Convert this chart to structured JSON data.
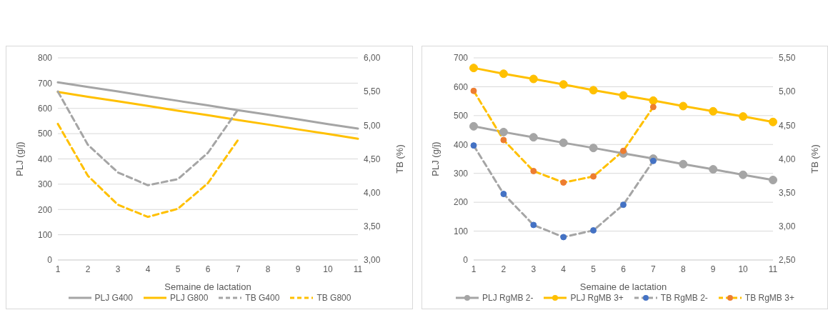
{
  "chart_data": [
    {
      "type": "line",
      "xlabel": "Semaine de lactation",
      "ylabel": "PLJ (g/j)",
      "y2label": "TB (%)",
      "categories": [
        "1",
        "2",
        "3",
        "4",
        "5",
        "6",
        "7",
        "8",
        "9",
        "10",
        "11"
      ],
      "ylim": [
        0,
        800
      ],
      "yticks": [
        0,
        100,
        200,
        300,
        400,
        500,
        600,
        700,
        800
      ],
      "y2lim": [
        3,
        6
      ],
      "y2ticks": [
        {
          "value": 3,
          "label": "3,00"
        },
        {
          "value": 3.5,
          "label": "3,50"
        },
        {
          "value": 4,
          "label": "4,00"
        },
        {
          "value": 4.5,
          "label": "4,50"
        },
        {
          "value": 5,
          "label": "5,00"
        },
        {
          "value": 5.5,
          "label": "5,50"
        },
        {
          "value": 6,
          "label": "6,00"
        }
      ],
      "grid": "y",
      "legend": "bottom",
      "series": [
        {
          "name": "PLJ G400",
          "color": "#a5a5a5",
          "line_style": "solid",
          "values": [
            703,
            685,
            667,
            648,
            630,
            612,
            593,
            575,
            557,
            538,
            520
          ]
        },
        {
          "name": "PLJ G800",
          "color": "#ffc000",
          "line_style": "solid",
          "values": [
            665,
            646,
            628,
            610,
            591,
            573,
            554,
            536,
            517,
            499,
            480
          ]
        },
        {
          "name": "TB G400",
          "color": "#a5a5a5",
          "line_style": "dashed",
          "axis": "y2",
          "values": [
            5.5,
            4.71,
            4.3,
            4.11,
            4.2,
            4.59,
            5.23,
            null,
            null,
            null,
            null
          ]
        },
        {
          "name": "TB G800",
          "color": "#ffc000",
          "line_style": "dashed",
          "axis": "y2",
          "values": [
            5.02,
            4.25,
            3.82,
            3.64,
            3.76,
            4.14,
            4.78,
            null,
            null,
            null,
            null
          ]
        }
      ]
    },
    {
      "type": "line",
      "xlabel": "Semaine de lactation",
      "ylabel": "PLJ (g/j)",
      "y2label": "TB (%)",
      "categories": [
        "1",
        "2",
        "3",
        "4",
        "5",
        "6",
        "7",
        "8",
        "9",
        "10",
        "11"
      ],
      "ylim": [
        0,
        700
      ],
      "yticks": [
        0,
        100,
        200,
        300,
        400,
        500,
        600,
        700
      ],
      "y2lim": [
        2.5,
        5.5
      ],
      "y2ticks": [
        {
          "value": 2.5,
          "label": "2,50"
        },
        {
          "value": 3,
          "label": "3,00"
        },
        {
          "value": 3.5,
          "label": "3,50"
        },
        {
          "value": 4,
          "label": "4,00"
        },
        {
          "value": 4.5,
          "label": "4,50"
        },
        {
          "value": 5,
          "label": "5,00"
        },
        {
          "value": 5.5,
          "label": "5,50"
        }
      ],
      "grid": "y",
      "legend": "bottom",
      "series": [
        {
          "name": "PLJ RgMB 2-",
          "color": "#a5a5a5",
          "line_style": "solid",
          "marker": "circle",
          "values": [
            463,
            443,
            425,
            406,
            388,
            369,
            351,
            332,
            314,
            295,
            277
          ]
        },
        {
          "name": "PLJ RgMB 3+",
          "color": "#ffc000",
          "line_style": "solid",
          "marker": "circle",
          "values": [
            665,
            645,
            627,
            608,
            588,
            570,
            552,
            533,
            515,
            497,
            478
          ]
        },
        {
          "name": "TB RgMB 2-",
          "color": "#a5a5a5",
          "line_style": "dashed",
          "marker": "circle",
          "axis": "y2",
          "colors": [
            "#4472c4",
            "#4472c4",
            "#4472c4",
            "#4472c4",
            "#4472c4",
            "#4472c4",
            "#4472c4",
            null,
            null,
            null,
            null
          ],
          "values": [
            4.2,
            3.48,
            3.02,
            2.84,
            2.94,
            3.32,
            3.97,
            null,
            null,
            null,
            null
          ]
        },
        {
          "name": "TB RgMB 3+",
          "color": "#ffc000",
          "line_style": "dashed",
          "marker": "circle",
          "axis": "y2",
          "colors": [
            "#ed7d31",
            "#ed7d31",
            "#ed7d31",
            "#ed7d31",
            "#ed7d31",
            "#ed7d31",
            "#ed7d31",
            null,
            null,
            null,
            null
          ],
          "values": [
            5.01,
            4.28,
            3.82,
            3.65,
            3.74,
            4.12,
            4.77,
            null,
            null,
            null,
            null
          ]
        }
      ]
    }
  ]
}
